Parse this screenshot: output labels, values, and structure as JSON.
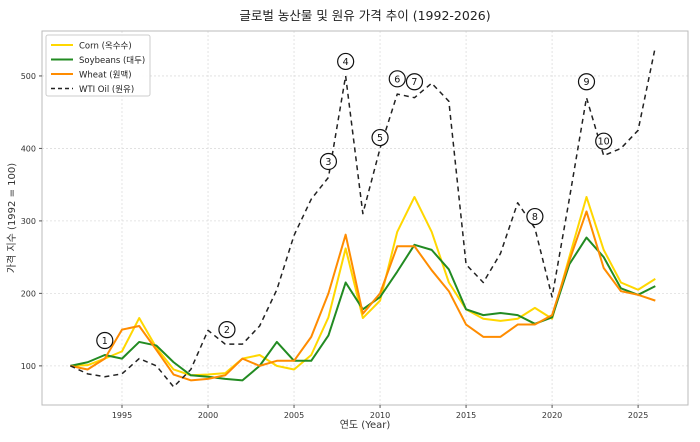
{
  "chart_data": {
    "type": "line",
    "title": "글로벌 농산물 및 원유 가격 추이 (1992-2026)",
    "xlabel": "연도 (Year)",
    "ylabel": "가격 지수 (1992 = 100)",
    "xlim": [
      1990.35,
      2027.9
    ],
    "ylim": [
      46,
      562
    ],
    "xticks": [
      1995,
      2000,
      2005,
      2010,
      2015,
      2020,
      2025
    ],
    "yticks": [
      100,
      200,
      300,
      400,
      500
    ],
    "grid": true,
    "legend_position": "top-left",
    "x": [
      1992,
      1993,
      1994,
      1995,
      1996,
      1997,
      1998,
      1999,
      2000,
      2001,
      2002,
      2003,
      2004,
      2005,
      2006,
      2007,
      2008,
      2009,
      2010,
      2011,
      2012,
      2013,
      2014,
      2015,
      2016,
      2017,
      2018,
      2019,
      2020,
      2021,
      2022,
      2023,
      2024,
      2025,
      2026
    ],
    "series": [
      {
        "name": "Corn (옥수수)",
        "color": "#FFD700",
        "dash": false,
        "values": [
          100,
          101,
          110,
          120,
          166,
          125,
          95,
          87,
          88,
          90,
          110,
          115,
          100,
          95,
          115,
          167,
          262,
          166,
          190,
          285,
          333,
          285,
          215,
          178,
          165,
          162,
          165,
          180,
          165,
          250,
          333,
          260,
          215,
          205,
          220
        ]
      },
      {
        "name": "Soybeans (대두)",
        "color": "#228B22",
        "dash": false,
        "values": [
          100,
          105,
          115,
          110,
          133,
          128,
          105,
          87,
          85,
          82,
          80,
          100,
          133,
          107,
          107,
          142,
          215,
          178,
          195,
          230,
          267,
          260,
          233,
          178,
          170,
          173,
          170,
          158,
          167,
          240,
          277,
          250,
          207,
          198,
          210
        ]
      },
      {
        "name": "Wheat (원맥)",
        "color": "#FF8C00",
        "dash": false,
        "values": [
          100,
          95,
          110,
          150,
          155,
          122,
          88,
          80,
          82,
          87,
          110,
          100,
          107,
          107,
          140,
          200,
          281,
          172,
          200,
          265,
          265,
          232,
          203,
          157,
          140,
          140,
          157,
          157,
          170,
          245,
          313,
          235,
          203,
          198,
          190
        ]
      },
      {
        "name": "WTI Oil (원유)",
        "color": "#222222",
        "dash": true,
        "values": [
          100,
          89,
          85,
          89,
          110,
          100,
          71,
          95,
          149,
          130,
          130,
          155,
          205,
          280,
          330,
          360,
          500,
          310,
          400,
          475,
          470,
          490,
          465,
          240,
          215,
          255,
          325,
          290,
          195,
          330,
          470,
          390,
          400,
          425,
          540
        ]
      }
    ],
    "annotations": [
      {
        "label": "1",
        "x": 1994,
        "y": 135
      },
      {
        "label": "2",
        "x": 2001.1,
        "y": 150
      },
      {
        "label": "3",
        "x": 2007,
        "y": 382
      },
      {
        "label": "4",
        "x": 2008,
        "y": 520
      },
      {
        "label": "5",
        "x": 2010,
        "y": 415
      },
      {
        "label": "6",
        "x": 2011,
        "y": 496
      },
      {
        "label": "7",
        "x": 2012,
        "y": 492
      },
      {
        "label": "8",
        "x": 2019,
        "y": 306
      },
      {
        "label": "9",
        "x": 2022,
        "y": 492
      },
      {
        "label": "10",
        "x": 2023,
        "y": 410
      }
    ]
  }
}
